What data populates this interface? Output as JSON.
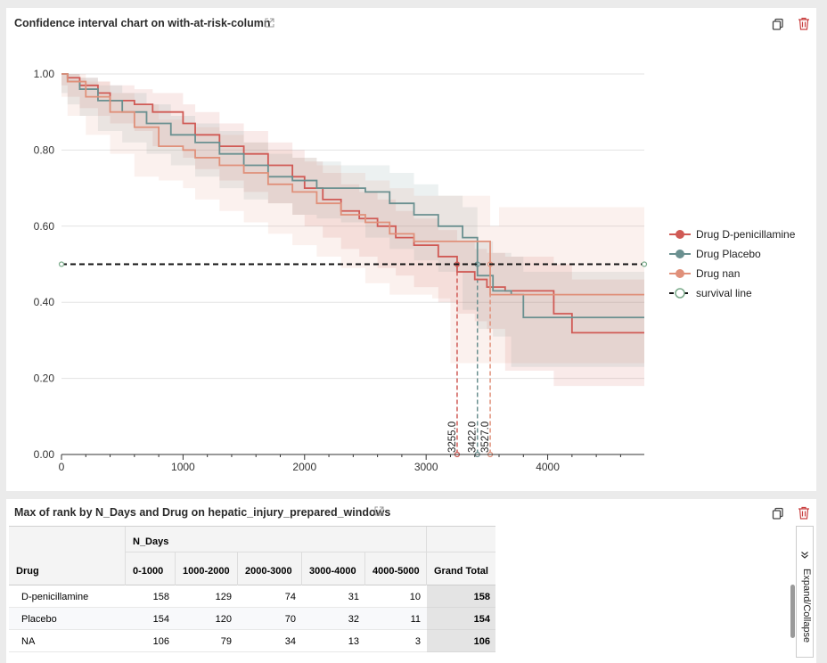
{
  "panel1": {
    "title": "Confidence interval chart on with-at-risk-column",
    "icons": [
      "external-link-icon",
      "copy-icon",
      "trash-icon"
    ]
  },
  "panel2": {
    "title": "Max of rank by N_Days and Drug on hepatic_injury_prepared_windows",
    "icons": [
      "external-link-icon",
      "copy-icon",
      "trash-icon"
    ],
    "table": {
      "col_group_label": "N_Days",
      "row_header": "Drug",
      "columns": [
        "0-1000",
        "1000-2000",
        "2000-3000",
        "3000-4000",
        "4000-5000",
        "Grand Total"
      ],
      "rows": [
        {
          "label": "D-penicillamine",
          "values": [
            "158",
            "129",
            "74",
            "31",
            "10",
            "158"
          ]
        },
        {
          "label": "Placebo",
          "values": [
            "154",
            "120",
            "70",
            "32",
            "11",
            "154"
          ]
        },
        {
          "label": "NA",
          "values": [
            "106",
            "79",
            "34",
            "13",
            "3",
            "106"
          ]
        }
      ]
    },
    "expand_label": "Expand/Collapse"
  },
  "colors": {
    "d_penicillamine": "#d05a55",
    "placebo": "#6a9090",
    "nan": "#e0907a",
    "survival_line": "#111111",
    "survival_marker": "#7aaa8a",
    "trash": "#c94040"
  },
  "chart_data": {
    "type": "line",
    "title": "",
    "xlabel": "",
    "ylabel": "",
    "xlim": [
      0,
      4795
    ],
    "ylim": [
      0,
      1.0
    ],
    "xticks": [
      "0",
      "1000",
      "2000",
      "3000",
      "4000"
    ],
    "yticks": [
      "0.00",
      "0.20",
      "0.40",
      "0.60",
      "0.80",
      "1.00"
    ],
    "grid": "horizontal",
    "legend_position": "right",
    "legend": [
      "Drug D-penicillamine",
      "Drug Placebo",
      "Drug nan",
      "survival line"
    ],
    "series": [
      {
        "name": "Drug D-penicillamine",
        "color_key": "d_penicillamine",
        "x": [
          0,
          50,
          150,
          300,
          400,
          600,
          750,
          1000,
          1100,
          1300,
          1500,
          1700,
          1900,
          2000,
          2150,
          2300,
          2450,
          2600,
          2750,
          2900,
          3100,
          3255,
          3400,
          3500,
          3650,
          4050,
          4200,
          4795
        ],
        "y": [
          1.0,
          0.99,
          0.97,
          0.95,
          0.93,
          0.92,
          0.9,
          0.87,
          0.84,
          0.81,
          0.79,
          0.76,
          0.73,
          0.7,
          0.67,
          0.64,
          0.62,
          0.6,
          0.57,
          0.55,
          0.52,
          0.48,
          0.46,
          0.44,
          0.43,
          0.37,
          0.32,
          0.32
        ],
        "ci_lower": [
          0.98,
          0.97,
          0.94,
          0.91,
          0.89,
          0.87,
          0.85,
          0.81,
          0.78,
          0.75,
          0.72,
          0.69,
          0.66,
          0.63,
          0.6,
          0.57,
          0.54,
          0.52,
          0.49,
          0.47,
          0.44,
          0.4,
          0.37,
          0.35,
          0.33,
          0.22,
          0.18,
          0.18
        ],
        "ci_upper": [
          1.0,
          1.0,
          0.99,
          0.98,
          0.97,
          0.96,
          0.95,
          0.92,
          0.9,
          0.87,
          0.85,
          0.82,
          0.8,
          0.77,
          0.74,
          0.71,
          0.69,
          0.67,
          0.64,
          0.62,
          0.59,
          0.56,
          0.54,
          0.53,
          0.52,
          0.5,
          0.46,
          0.46
        ]
      },
      {
        "name": "Drug Placebo",
        "color_key": "placebo",
        "x": [
          0,
          50,
          150,
          300,
          500,
          700,
          900,
          1100,
          1300,
          1500,
          1700,
          1900,
          2100,
          2300,
          2500,
          2700,
          2900,
          3100,
          3300,
          3422,
          3550,
          3700,
          3800,
          4795
        ],
        "y": [
          1.0,
          0.98,
          0.96,
          0.93,
          0.9,
          0.87,
          0.84,
          0.82,
          0.79,
          0.76,
          0.73,
          0.72,
          0.7,
          0.7,
          0.69,
          0.66,
          0.63,
          0.6,
          0.57,
          0.47,
          0.43,
          0.42,
          0.36,
          0.36
        ],
        "ci_lower": [
          0.98,
          0.95,
          0.92,
          0.89,
          0.85,
          0.82,
          0.79,
          0.76,
          0.73,
          0.7,
          0.67,
          0.66,
          0.63,
          0.62,
          0.61,
          0.57,
          0.54,
          0.51,
          0.48,
          0.38,
          0.33,
          0.31,
          0.23,
          0.23
        ],
        "ci_upper": [
          1.0,
          1.0,
          0.99,
          0.97,
          0.95,
          0.92,
          0.89,
          0.87,
          0.85,
          0.82,
          0.79,
          0.78,
          0.77,
          0.76,
          0.76,
          0.74,
          0.71,
          0.68,
          0.65,
          0.56,
          0.53,
          0.52,
          0.48,
          0.48
        ]
      },
      {
        "name": "Drug nan",
        "color_key": "nan",
        "x": [
          0,
          50,
          200,
          400,
          600,
          800,
          1000,
          1100,
          1300,
          1500,
          1700,
          1900,
          2100,
          2300,
          2500,
          2700,
          2900,
          3050,
          3200,
          3527,
          3600,
          4795
        ],
        "y": [
          1.0,
          0.98,
          0.94,
          0.9,
          0.86,
          0.81,
          0.8,
          0.78,
          0.76,
          0.74,
          0.71,
          0.69,
          0.66,
          0.63,
          0.61,
          0.58,
          0.56,
          0.56,
          0.56,
          0.42,
          0.42,
          0.42
        ],
        "ci_lower": [
          0.97,
          0.94,
          0.89,
          0.84,
          0.79,
          0.73,
          0.72,
          0.7,
          0.67,
          0.64,
          0.61,
          0.58,
          0.55,
          0.52,
          0.49,
          0.45,
          0.42,
          0.42,
          0.41,
          0.24,
          0.24,
          0.24
        ],
        "ci_upper": [
          1.0,
          1.0,
          0.98,
          0.95,
          0.92,
          0.88,
          0.87,
          0.86,
          0.84,
          0.82,
          0.8,
          0.78,
          0.76,
          0.74,
          0.72,
          0.7,
          0.68,
          0.68,
          0.68,
          0.6,
          0.65,
          0.65
        ]
      }
    ],
    "survival_line": {
      "name": "survival line",
      "y": 0.5,
      "x_range": [
        0,
        4795
      ]
    },
    "medians": [
      {
        "label": "3255.0",
        "x": 3255,
        "color_key": "d_penicillamine"
      },
      {
        "label": "3422.0",
        "x": 3422,
        "color_key": "placebo"
      },
      {
        "label": "3527.0",
        "x": 3527,
        "color_key": "nan"
      }
    ]
  }
}
